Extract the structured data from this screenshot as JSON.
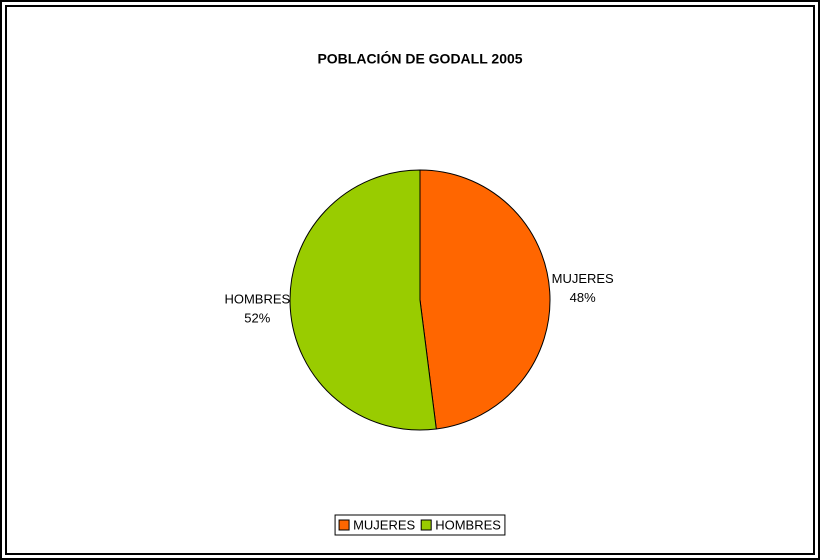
{
  "chart_data": {
    "type": "pie",
    "title": "POBLACIÓN DE GODALL 2005",
    "categories": [
      "MUJERES",
      "HOMBRES"
    ],
    "values": [
      48,
      52
    ],
    "value_labels": [
      "48%",
      "52%"
    ],
    "colors": [
      "#ff6600",
      "#99cc00"
    ],
    "legend": "bottom"
  }
}
